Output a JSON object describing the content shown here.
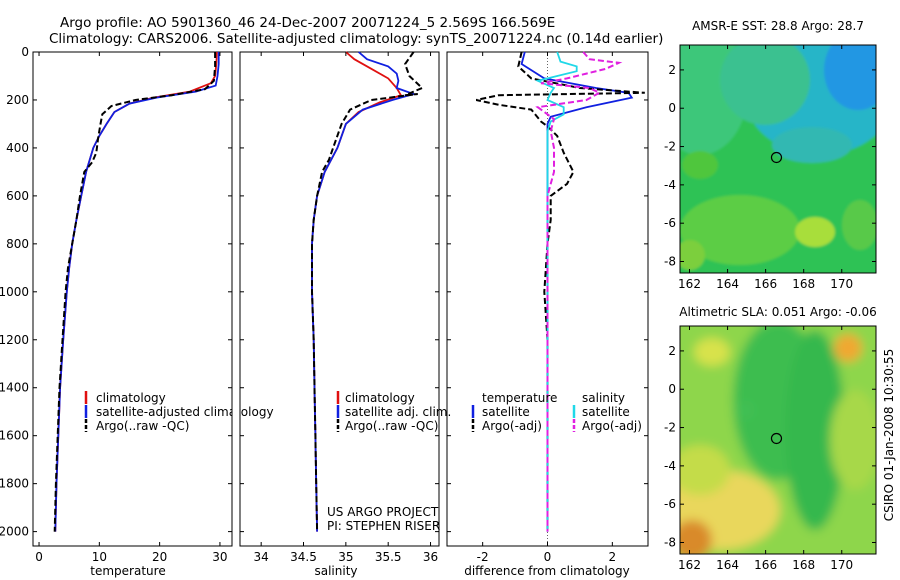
{
  "header": {
    "line1": "Argo profile: AO 5901360_46 24-Dec-2007 20071224_5 2.569S 166.569E",
    "line2": "Climatology: CARS2006. Satellite-adjusted climatology: synTS_20071224.nc (0.14d earlier)"
  },
  "colors": {
    "climatology": "#e01010",
    "satellite": "#1020e0",
    "argo": "#000000",
    "salinity_sat": "#20d8e8",
    "salinity_argo": "#e020e0"
  },
  "chart_data": [
    {
      "type": "line",
      "id": "temperature",
      "xlabel": "temperature",
      "ylabel": "",
      "xlim": [
        -1,
        32
      ],
      "ylim": [
        2060,
        0
      ],
      "x_ticks": [
        0,
        10,
        20,
        30
      ],
      "y_ticks": [
        0,
        200,
        400,
        600,
        800,
        1000,
        1200,
        1400,
        1600,
        1800,
        2000
      ],
      "legend": [
        "climatology",
        "satellite-adjusted climatology",
        "Argo(..raw -QC)"
      ],
      "series": [
        {
          "name": "climatology",
          "color": "climatology",
          "dash": false,
          "points": [
            [
              29.5,
              0
            ],
            [
              29.4,
              50
            ],
            [
              29.2,
              100
            ],
            [
              28.5,
              130
            ],
            [
              25,
              165
            ],
            [
              19,
              190
            ],
            [
              15,
              215
            ],
            [
              12.5,
              250
            ],
            [
              11.2,
              300
            ],
            [
              10,
              350
            ],
            [
              9,
              400
            ],
            [
              7.8,
              500
            ],
            [
              7,
              600
            ],
            [
              6.2,
              700
            ],
            [
              5.5,
              800
            ],
            [
              5,
              900
            ],
            [
              4.6,
              1000
            ],
            [
              4,
              1200
            ],
            [
              3.5,
              1400
            ],
            [
              3.2,
              1600
            ],
            [
              2.9,
              1800
            ],
            [
              2.7,
              2000
            ]
          ]
        },
        {
          "name": "satellite-adjusted climatology",
          "color": "satellite",
          "dash": false,
          "points": [
            [
              29.8,
              0
            ],
            [
              29.8,
              50
            ],
            [
              29.6,
              100
            ],
            [
              29.3,
              140
            ],
            [
              26,
              165
            ],
            [
              19.5,
              190
            ],
            [
              15,
              215
            ],
            [
              12.5,
              250
            ],
            [
              11.2,
              300
            ],
            [
              10,
              350
            ],
            [
              9,
              400
            ],
            [
              7.8,
              500
            ],
            [
              7,
              600
            ],
            [
              6.2,
              700
            ],
            [
              5.5,
              800
            ],
            [
              5,
              900
            ],
            [
              4.6,
              1000
            ],
            [
              4,
              1200
            ],
            [
              3.5,
              1400
            ],
            [
              3.2,
              1600
            ],
            [
              2.9,
              1800
            ],
            [
              2.7,
              2000
            ]
          ]
        },
        {
          "name": "Argo(..raw -QC)",
          "color": "argo",
          "dash": true,
          "points": [
            [
              29.2,
              0
            ],
            [
              29.2,
              60
            ],
            [
              29,
              120
            ],
            [
              27.5,
              155
            ],
            [
              22,
              180
            ],
            [
              16,
              200
            ],
            [
              12,
              225
            ],
            [
              10.5,
              260
            ],
            [
              10.2,
              300
            ],
            [
              9.8,
              360
            ],
            [
              9.5,
              420
            ],
            [
              8.8,
              460
            ],
            [
              7.5,
              500
            ],
            [
              6.8,
              600
            ],
            [
              6.2,
              700
            ],
            [
              5.5,
              800
            ],
            [
              4.8,
              900
            ],
            [
              4.4,
              1000
            ],
            [
              3.9,
              1200
            ],
            [
              3.4,
              1400
            ],
            [
              3.1,
              1600
            ],
            [
              2.8,
              1800
            ],
            [
              2.6,
              2000
            ]
          ]
        }
      ]
    },
    {
      "type": "line",
      "id": "salinity",
      "xlabel": "salinity",
      "xlim": [
        33.75,
        36.1
      ],
      "ylim": [
        2060,
        0
      ],
      "x_ticks": [
        34,
        34.5,
        35,
        35.5,
        36
      ],
      "y_ticks": [],
      "legend": [
        "climatology",
        "satellite adj. clim.",
        "Argo(..raw -QC)"
      ],
      "annotation": [
        "US ARGO PROJECT",
        "PI: STEPHEN RISER"
      ],
      "series": [
        {
          "name": "climatology",
          "color": "climatology",
          "dash": false,
          "points": [
            [
              35,
              0
            ],
            [
              35.1,
              30
            ],
            [
              35.3,
              70
            ],
            [
              35.5,
              110
            ],
            [
              35.6,
              150
            ],
            [
              35.65,
              180
            ],
            [
              35.4,
              210
            ],
            [
              35.15,
              250
            ],
            [
              35,
              300
            ],
            [
              34.9,
              400
            ],
            [
              34.75,
              500
            ],
            [
              34.66,
              600
            ],
            [
              34.62,
              700
            ],
            [
              34.6,
              800
            ],
            [
              34.6,
              1000
            ],
            [
              34.62,
              1200
            ],
            [
              34.63,
              1400
            ],
            [
              34.64,
              1600
            ],
            [
              34.65,
              1800
            ],
            [
              34.66,
              2000
            ]
          ]
        },
        {
          "name": "satellite adj. clim.",
          "color": "satellite",
          "dash": false,
          "points": [
            [
              35.15,
              0
            ],
            [
              35.25,
              30
            ],
            [
              35.5,
              60
            ],
            [
              35.6,
              90
            ],
            [
              35.62,
              120
            ],
            [
              35.6,
              150
            ],
            [
              35.8,
              175
            ],
            [
              35.55,
              200
            ],
            [
              35.2,
              240
            ],
            [
              35,
              300
            ],
            [
              34.9,
              400
            ],
            [
              34.75,
              500
            ],
            [
              34.66,
              600
            ],
            [
              34.62,
              700
            ],
            [
              34.6,
              800
            ],
            [
              34.6,
              1000
            ],
            [
              34.62,
              1200
            ],
            [
              34.63,
              1400
            ],
            [
              34.64,
              1600
            ],
            [
              34.65,
              1800
            ],
            [
              34.66,
              2000
            ]
          ]
        },
        {
          "name": "Argo(..raw -QC)",
          "color": "argo",
          "dash": true,
          "points": [
            [
              35.8,
              0
            ],
            [
              35.7,
              50
            ],
            [
              35.75,
              100
            ],
            [
              35.9,
              150
            ],
            [
              35.7,
              180
            ],
            [
              35.85,
              175
            ],
            [
              35.3,
              200
            ],
            [
              35.05,
              240
            ],
            [
              34.95,
              300
            ],
            [
              34.85,
              400
            ],
            [
              34.8,
              450
            ],
            [
              34.72,
              500
            ],
            [
              34.66,
              600
            ],
            [
              34.62,
              700
            ],
            [
              34.6,
              800
            ],
            [
              34.6,
              1000
            ],
            [
              34.62,
              1200
            ],
            [
              34.63,
              1400
            ],
            [
              34.64,
              1600
            ],
            [
              34.65,
              1800
            ],
            [
              34.66,
              2000
            ]
          ]
        }
      ]
    },
    {
      "type": "line",
      "id": "difference",
      "xlabel": "difference from climatology",
      "xlim": [
        -3.1,
        3.1
      ],
      "ylim": [
        2060,
        0
      ],
      "x_ticks": [
        -2,
        0,
        2
      ],
      "y_ticks": [],
      "legend": [
        "temperature",
        "satellite",
        "Argo(-adj)",
        "salinity",
        "satellite",
        "Argo(-adj)"
      ],
      "series": [
        {
          "name": "satellite",
          "color": "satellite",
          "dash": false,
          "points": [
            [
              -0.7,
              0
            ],
            [
              -0.8,
              50
            ],
            [
              -0.1,
              110
            ],
            [
              1.5,
              150
            ],
            [
              2.5,
              170
            ],
            [
              2.6,
              190
            ],
            [
              1.2,
              230
            ],
            [
              0.1,
              270
            ],
            [
              0,
              300
            ],
            [
              0,
              500
            ],
            [
              0,
              2000
            ]
          ]
        },
        {
          "name": "Argo(-adj)",
          "color": "argo",
          "dash": true,
          "points": [
            [
              -0.8,
              0
            ],
            [
              -0.9,
              60
            ],
            [
              -0.5,
              110
            ],
            [
              1,
              150
            ],
            [
              3,
              170
            ],
            [
              -1.5,
              180
            ],
            [
              -2.2,
              200
            ],
            [
              -1.5,
              220
            ],
            [
              -0.5,
              240
            ],
            [
              -0.2,
              290
            ],
            [
              0,
              310
            ],
            [
              0.3,
              350
            ],
            [
              0.5,
              420
            ],
            [
              0.8,
              500
            ],
            [
              0.6,
              550
            ],
            [
              0.1,
              600
            ],
            [
              0.1,
              700
            ],
            [
              0,
              800
            ],
            [
              -0.1,
              1000
            ],
            [
              0,
              1200
            ],
            [
              0,
              1400
            ],
            [
              0,
              1600
            ],
            [
              0,
              2000
            ]
          ]
        },
        {
          "name": "satellite",
          "color": "salinity_sat",
          "dash": false,
          "points": [
            [
              0.3,
              0
            ],
            [
              0.4,
              40
            ],
            [
              0.9,
              60
            ],
            [
              0.9,
              80
            ],
            [
              0.3,
              100
            ],
            [
              -0.3,
              120
            ],
            [
              0.2,
              150
            ],
            [
              0.1,
              170
            ],
            [
              0,
              200
            ],
            [
              0.5,
              230
            ],
            [
              0.5,
              260
            ],
            [
              0.1,
              290
            ],
            [
              0,
              330
            ],
            [
              0,
              400
            ],
            [
              0,
              2000
            ]
          ]
        },
        {
          "name": "Argo(-adj)",
          "color": "salinity_argo",
          "dash": true,
          "points": [
            [
              1.1,
              0
            ],
            [
              1.3,
              30
            ],
            [
              2.2,
              45
            ],
            [
              1.8,
              70
            ],
            [
              1.2,
              90
            ],
            [
              0.6,
              110
            ],
            [
              -0.2,
              130
            ],
            [
              1.3,
              150
            ],
            [
              1.6,
              170
            ],
            [
              1.2,
              200
            ],
            [
              -0.3,
              230
            ],
            [
              0.2,
              280
            ],
            [
              0.1,
              330
            ],
            [
              0.2,
              400
            ],
            [
              0.2,
              500
            ],
            [
              0.1,
              550
            ],
            [
              0,
              600
            ],
            [
              0,
              2000
            ]
          ]
        }
      ]
    },
    {
      "type": "heatmap",
      "id": "sst",
      "title": "AMSR-E SST: 28.8 Argo: 28.7",
      "xlim": [
        161.5,
        171.8
      ],
      "ylim": [
        -8.6,
        3.3
      ],
      "x_ticks": [
        162,
        164,
        166,
        168,
        170
      ],
      "y_ticks": [
        2,
        0,
        -2,
        -4,
        -6,
        -8
      ],
      "marker": [
        166.57,
        -2.57
      ]
    },
    {
      "type": "heatmap",
      "id": "sla",
      "title": "Altimetric SLA: 0.051 Argo: -0.06",
      "xlim": [
        161.5,
        171.8
      ],
      "ylim": [
        -8.6,
        3.3
      ],
      "x_ticks": [
        162,
        164,
        166,
        168,
        170
      ],
      "y_ticks": [
        2,
        0,
        -2,
        -4,
        -6,
        -8
      ],
      "marker": [
        166.57,
        -2.57
      ]
    }
  ],
  "footer": {
    "stamp": "CSIRO 01-Jan-2008 10:30:55"
  }
}
